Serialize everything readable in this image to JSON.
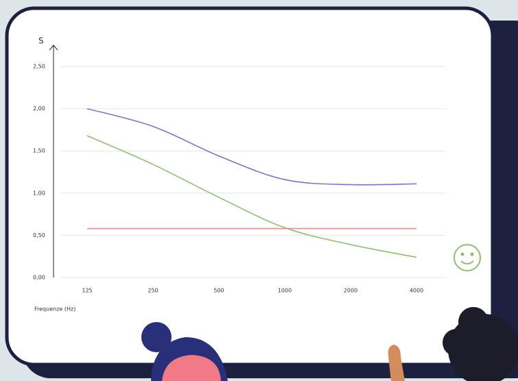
{
  "chart_data": {
    "type": "line",
    "y_label": "S",
    "x_label": "Frequenze (Hz)",
    "categories": [
      "125",
      "250",
      "500",
      "1000",
      "2000",
      "4000"
    ],
    "series": [
      {
        "color": "#7b72c9",
        "values": [
          2.0,
          1.79,
          1.44,
          1.16,
          1.1,
          1.11
        ]
      },
      {
        "color": "#8fbf6a",
        "values": [
          1.68,
          1.34,
          0.95,
          0.59,
          0.39,
          0.24
        ]
      },
      {
        "color": "#f08a7a",
        "values": [
          0.58,
          0.58,
          0.58,
          0.58,
          0.58,
          0.58
        ]
      }
    ],
    "ylim": [
      0,
      2.5
    ],
    "yticks": [
      {
        "value": 0,
        "label": "0,00"
      },
      {
        "value": 0.5,
        "label": "0,50"
      },
      {
        "value": 1,
        "label": "1,00"
      },
      {
        "value": 1.5,
        "label": "1,50"
      },
      {
        "value": 2,
        "label": "2,00"
      },
      {
        "value": 2.5,
        "label": "2,50"
      }
    ],
    "grid": true
  }
}
